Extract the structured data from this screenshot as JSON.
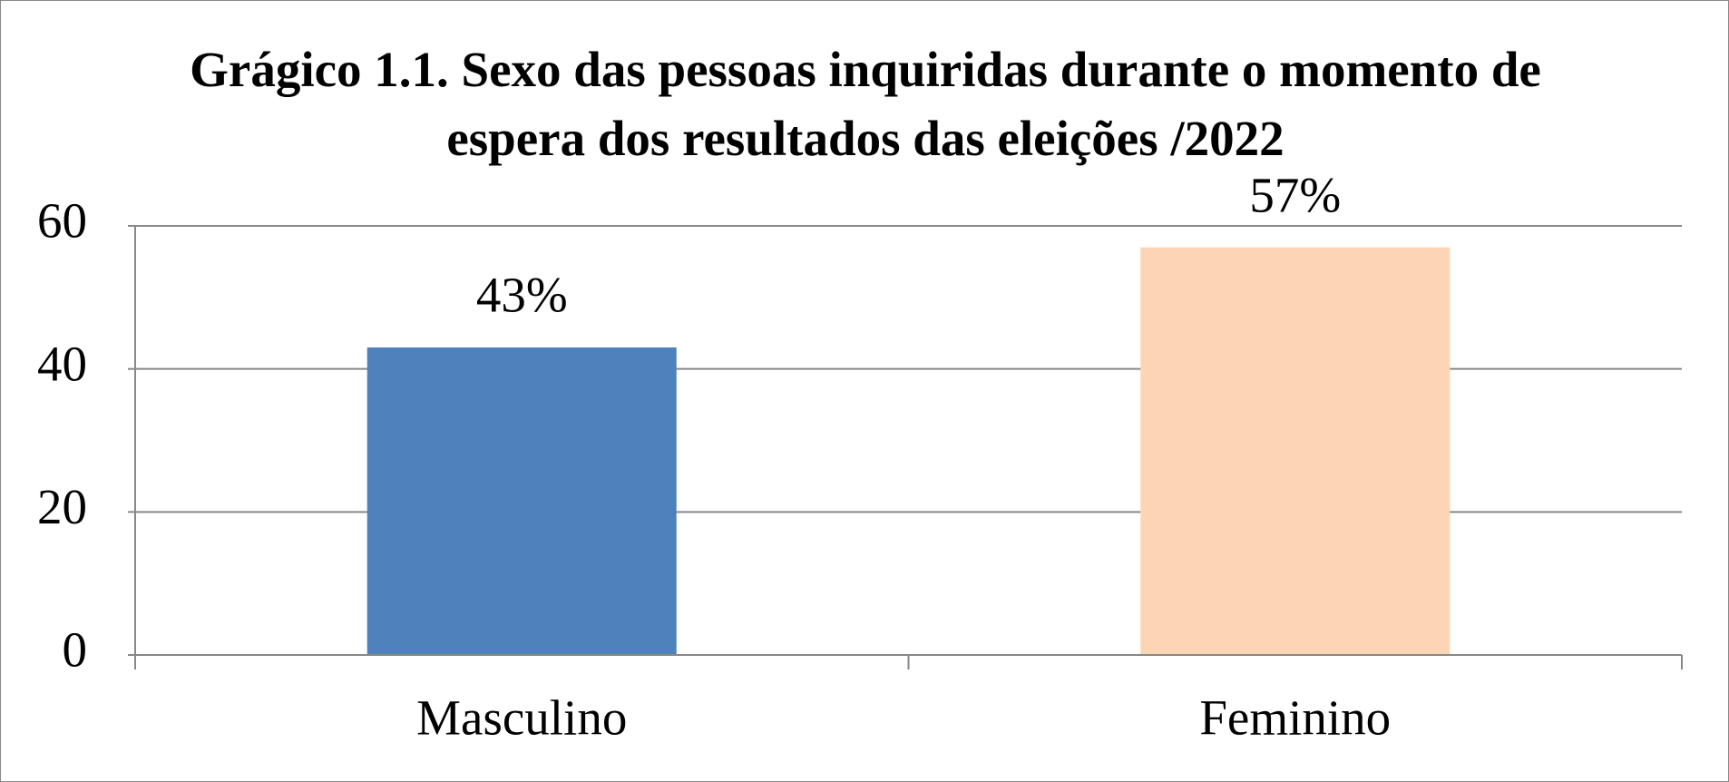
{
  "chart_data": {
    "type": "bar",
    "title": "Grágico 1.1. Sexo das pessoas inquiridas durante o momento de espera dos resultados das eleições /2022",
    "categories": [
      "Masculino",
      "Feminino"
    ],
    "values": [
      43,
      57
    ],
    "value_labels": [
      "43%",
      "57%"
    ],
    "colors": [
      "#4f81bd",
      "#fcd5b5"
    ],
    "ylim": [
      0,
      60
    ],
    "yticks": [
      0,
      20,
      40,
      60
    ],
    "grid": true
  }
}
